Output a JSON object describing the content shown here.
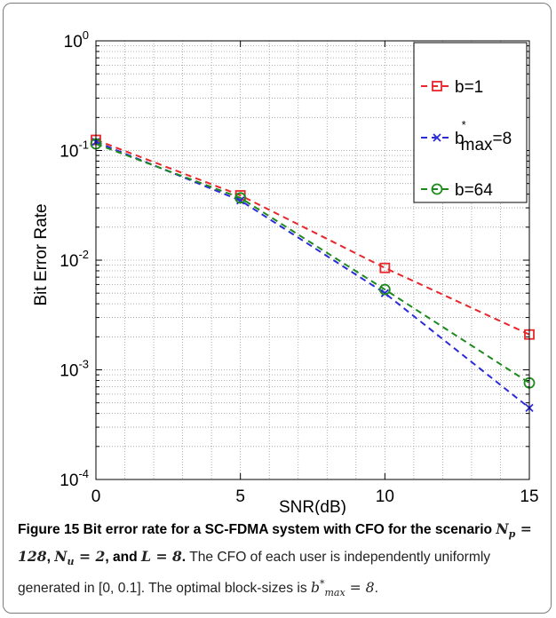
{
  "chart_data": {
    "type": "line",
    "x": [
      0,
      5,
      10,
      15
    ],
    "xlabel": "SNR(dB)",
    "ylabel": "Bit Error Rate",
    "xlim": [
      0,
      15
    ],
    "ylim": [
      0.0001,
      1
    ],
    "yscale": "log",
    "grid": true,
    "legend_position": "top-right",
    "x_ticks": [
      "0",
      "5",
      "10",
      "15"
    ],
    "y_ticks": [
      {
        "base": "10",
        "exp": "0",
        "value": 1
      },
      {
        "base": "10",
        "exp": "-1",
        "value": 0.1
      },
      {
        "base": "10",
        "exp": "-2",
        "value": 0.01
      },
      {
        "base": "10",
        "exp": "-3",
        "value": 0.001
      },
      {
        "base": "10",
        "exp": "-4",
        "value": 0.0001
      }
    ],
    "series": [
      {
        "name": "b=1",
        "legend_main": "b=1",
        "legend_sup": "",
        "legend_sub": "",
        "legend_tail": "",
        "color": "#e8262b",
        "marker": "square",
        "values": [
          0.125,
          0.039,
          0.0085,
          0.0021
        ]
      },
      {
        "name": "b*max=8",
        "legend_main": "b",
        "legend_sup": "*",
        "legend_sub": "max",
        "legend_tail": "=8",
        "color": "#2b2bd9",
        "marker": "x",
        "values": [
          0.12,
          0.035,
          0.005,
          0.00045
        ]
      },
      {
        "name": "b=64",
        "legend_main": "b=64",
        "legend_sup": "",
        "legend_sub": "",
        "legend_tail": "",
        "color": "#1e8a1e",
        "marker": "circle",
        "values": [
          0.115,
          0.037,
          0.0054,
          0.00076
        ]
      }
    ]
  },
  "caption": {
    "label": "Figure 15",
    "title": "Bit error rate for a SC-FDMA system with CFO for the scenario",
    "np_value": "128",
    "nu_value": "2",
    "l_value": "8",
    "sep1": ",",
    "sep2": ", and",
    "end": ".",
    "body": "The CFO of each user is independently uniformly generated in [0, 0.1]. The optimal block-sizes is",
    "bmax_value": "8",
    "final": "."
  }
}
